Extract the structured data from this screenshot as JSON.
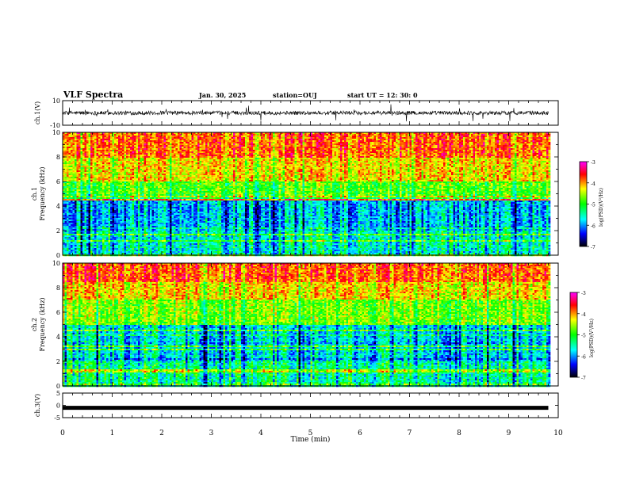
{
  "header": {
    "title": "VLF Spectra",
    "date": "Jan. 30, 2025",
    "station": "station=OUJ",
    "start": "start UT =  12: 30: 0"
  },
  "colorbar": {
    "label": "log(PSD)(V²/Hz)",
    "ticks": [
      "-3",
      "-4",
      "-5",
      "-6",
      "-7"
    ],
    "colors": [
      "#ff00ff",
      "#ff0000",
      "#ffff00",
      "#00ff00",
      "#00ffff",
      "#0000ff",
      "#000000"
    ]
  },
  "chart_data": [
    {
      "type": "line",
      "ylabel": "ch.1(V)",
      "ytick_labels": [
        "10",
        "-10"
      ],
      "ylim": [
        -10,
        10
      ],
      "xlim": [
        0,
        10
      ],
      "series": [
        {
          "approx_range_V": [
            -2,
            2
          ]
        }
      ]
    },
    {
      "type": "heatmap",
      "ylabel": "ch.1\nFrequency (kHz)",
      "ytick_labels": [
        "0",
        "2",
        "4",
        "6",
        "8",
        "10"
      ],
      "ylim": [
        0,
        10
      ],
      "xlim": [
        0,
        10
      ],
      "color_scale": {
        "label": "log(PSD)(V²/Hz)",
        "range": [
          -7,
          -3
        ]
      },
      "data_extent_min": [
        0,
        9.8
      ],
      "bands_log_psd": [
        {
          "freq_kHz": [
            0,
            2
          ],
          "log_psd": -5.5
        },
        {
          "freq_kHz": [
            2,
            4.5
          ],
          "log_psd": -5.8
        },
        {
          "freq_kHz": [
            4.5,
            6
          ],
          "log_psd": -4.8
        },
        {
          "freq_kHz": [
            6,
            8
          ],
          "log_psd": -4.2
        },
        {
          "freq_kHz": [
            8,
            10
          ],
          "log_psd": -3.8
        }
      ]
    },
    {
      "type": "heatmap",
      "ylabel": "ch.2\nFrequency (kHz)",
      "ytick_labels": [
        "0",
        "2",
        "4",
        "6",
        "8",
        "10"
      ],
      "ylim": [
        0,
        10
      ],
      "xlim": [
        0,
        10
      ],
      "color_scale": {
        "label": "log(PSD)(V²/Hz)",
        "range": [
          -7,
          -3
        ]
      },
      "data_extent_min": [
        0,
        9.8
      ],
      "bands_log_psd": [
        {
          "freq_kHz": [
            0,
            2
          ],
          "log_psd": -5.4
        },
        {
          "freq_kHz": [
            2,
            5
          ],
          "log_psd": -5.7
        },
        {
          "freq_kHz": [
            5,
            7
          ],
          "log_psd": -4.7
        },
        {
          "freq_kHz": [
            7,
            8.5
          ],
          "log_psd": -4.2
        },
        {
          "freq_kHz": [
            8.5,
            10
          ],
          "log_psd": -3.8
        }
      ]
    },
    {
      "type": "line",
      "ylabel": "ch.3(V)",
      "ytick_labels": [
        "5",
        "0",
        "-5"
      ],
      "ylim": [
        -5,
        5
      ],
      "xlim": [
        0,
        10
      ],
      "xlabel": "Time (min)",
      "xtick_labels": [
        "0",
        "1",
        "2",
        "3",
        "4",
        "5",
        "6",
        "7",
        "8",
        "9",
        "10"
      ],
      "series": [
        {
          "constant_V": -1,
          "x_range": [
            0,
            9.8
          ]
        }
      ]
    }
  ]
}
